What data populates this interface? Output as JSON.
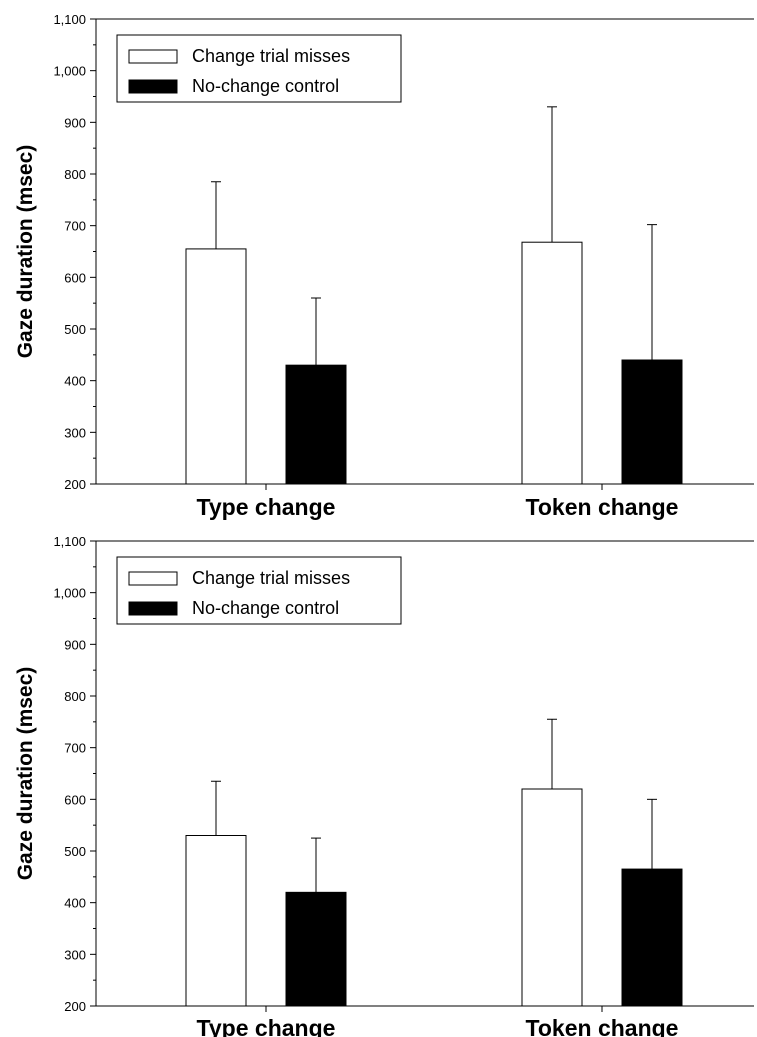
{
  "chart_data": [
    {
      "type": "bar",
      "categories": [
        "Type change",
        "Token change"
      ],
      "series": [
        {
          "name": "Change trial misses",
          "values": [
            655,
            668
          ],
          "error": [
            130,
            262
          ],
          "color": "#ffffff"
        },
        {
          "name": "No-change control",
          "values": [
            430,
            440
          ],
          "error": [
            130,
            262
          ],
          "color": "#000000"
        }
      ],
      "ylabel": "Gaze duration (msec)",
      "ylim": [
        200,
        1100
      ],
      "yticks": [
        200,
        300,
        400,
        500,
        600,
        700,
        800,
        900,
        1000,
        1100
      ],
      "ytick_labels": [
        "200",
        "300",
        "400",
        "500",
        "600",
        "700",
        "800",
        "900",
        "1,000",
        "1,100"
      ],
      "grid": false,
      "legend": "top-left"
    },
    {
      "type": "bar",
      "categories": [
        "Type change",
        "Token change"
      ],
      "series": [
        {
          "name": "Change trial misses",
          "values": [
            530,
            620
          ],
          "error": [
            105,
            135
          ],
          "color": "#ffffff"
        },
        {
          "name": "No-change control",
          "values": [
            420,
            465
          ],
          "error": [
            105,
            135
          ],
          "color": "#000000"
        }
      ],
      "ylabel": "Gaze duration (msec)",
      "ylim": [
        200,
        1100
      ],
      "yticks": [
        200,
        300,
        400,
        500,
        600,
        700,
        800,
        900,
        1000,
        1100
      ],
      "ytick_labels": [
        "200",
        "300",
        "400",
        "500",
        "600",
        "700",
        "800",
        "900",
        "1,000",
        "1,100"
      ],
      "grid": false,
      "legend": "top-left"
    }
  ]
}
